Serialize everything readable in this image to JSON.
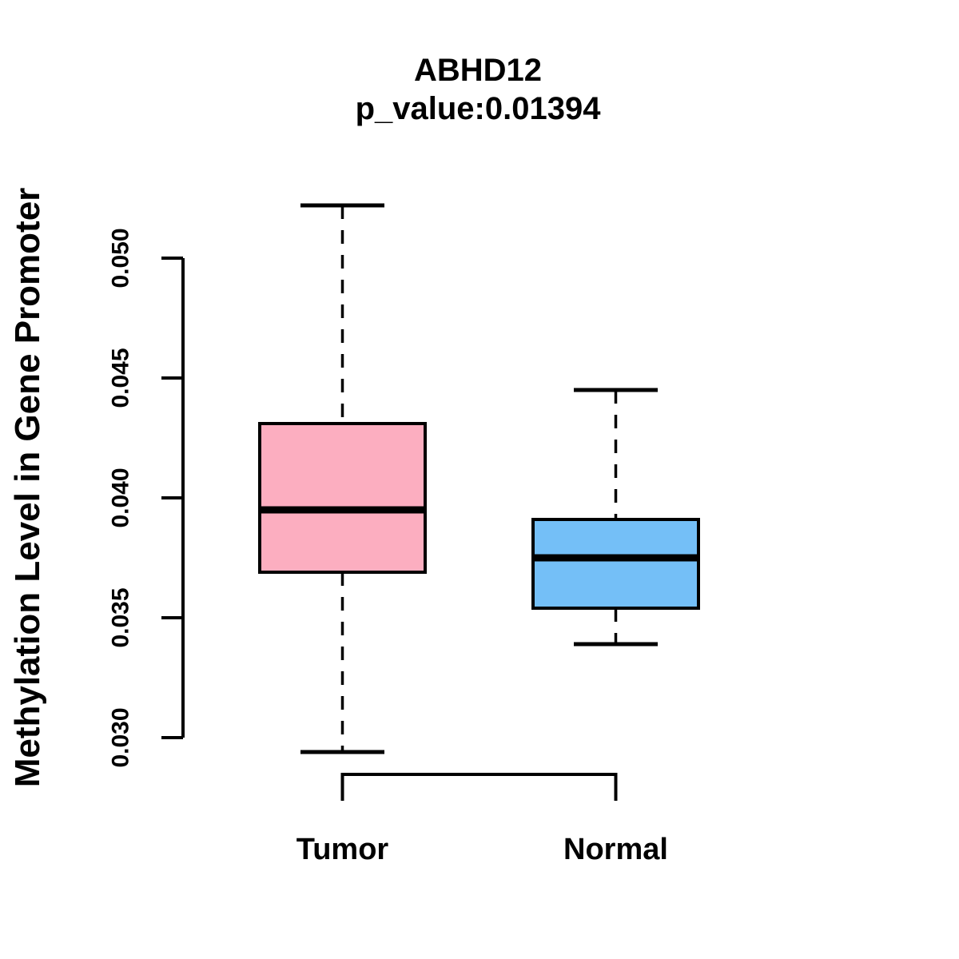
{
  "header": {
    "title": "ABHD12",
    "subtitle": "p_value:0.01394"
  },
  "chart_data": {
    "type": "box",
    "title": "ABHD12",
    "subtitle": "p_value:0.01394",
    "xlabel": "",
    "ylabel": "Methylation Level in Gene Promoter",
    "ylim": [
      0.03,
      0.05
    ],
    "yticks": [
      0.03,
      0.035,
      0.04,
      0.045,
      0.05
    ],
    "ytick_labels": [
      "0.030",
      "0.035",
      "0.040",
      "0.045",
      "0.050"
    ],
    "grid": false,
    "legend": "none",
    "categories": [
      "Tumor",
      "Normal"
    ],
    "series": [
      {
        "name": "Tumor",
        "color": "#FCAEC0",
        "whisker_low": 0.0294,
        "q1": 0.0369,
        "median": 0.0395,
        "q3": 0.0431,
        "whisker_high": 0.0522
      },
      {
        "name": "Normal",
        "color": "#74BFF7",
        "whisker_low": 0.0339,
        "q1": 0.0354,
        "median": 0.0375,
        "q3": 0.0391,
        "whisker_high": 0.0445
      }
    ],
    "annotations": {
      "group_bracket": "connects Tumor and Normal positions below plot"
    },
    "colors": {
      "stroke": "#000000",
      "background": "#FFFFFF"
    }
  }
}
